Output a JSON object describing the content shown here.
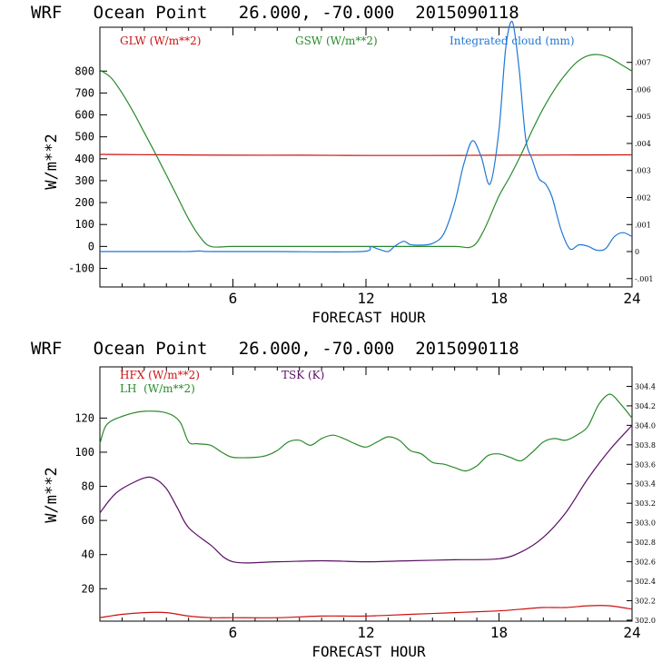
{
  "chart_data": [
    {
      "type": "line",
      "title": "WRF   Ocean Point   26.000, -70.000  2015090118",
      "xlabel": "FORECAST HOUR",
      "ylabel": "W/m**2",
      "xlim": [
        0,
        24
      ],
      "ylim": [
        -185,
        1000
      ],
      "x_ticks": [
        6,
        12,
        18,
        24
      ],
      "y_ticks": [
        -100,
        0,
        100,
        200,
        300,
        400,
        500,
        600,
        700,
        800
      ],
      "y2_label": "",
      "y2_ticks": [
        {
          "value": -0.001,
          "label": "-.001"
        },
        {
          "value": 0,
          "label": "0"
        },
        {
          "value": 0.001,
          "label": ".001"
        },
        {
          "value": 0.002,
          "label": ".002"
        },
        {
          "value": 0.003,
          "label": ".003"
        },
        {
          "value": 0.004,
          "label": ".004"
        },
        {
          "value": 0.005,
          "label": ".005"
        },
        {
          "value": 0.006,
          "label": ".006"
        },
        {
          "value": 0.007,
          "label": ".007"
        }
      ],
      "series": [
        {
          "name": "GLW (W/m**2)",
          "axis": "left",
          "color": "#cc1111",
          "x": [
            0,
            3,
            6,
            9,
            12,
            15,
            18,
            21,
            24
          ],
          "values": [
            420,
            418,
            416,
            416,
            415,
            415,
            416,
            417,
            418
          ]
        },
        {
          "name": "GSW (W/m**2)",
          "axis": "left",
          "color": "#2a8a2a",
          "x": [
            0,
            0.5,
            1,
            1.5,
            2,
            2.5,
            3,
            3.5,
            4,
            4.5,
            5,
            6,
            8,
            10,
            12,
            14,
            16,
            16.8,
            17.3,
            18,
            18.5,
            19,
            19.5,
            20,
            20.5,
            21,
            21.5,
            22,
            22.5,
            23,
            23.5,
            24
          ],
          "values": [
            805,
            770,
            700,
            615,
            520,
            425,
            325,
            225,
            125,
            45,
            0,
            0,
            0,
            0,
            0,
            0,
            0,
            0,
            70,
            230,
            320,
            420,
            530,
            630,
            715,
            785,
            840,
            870,
            875,
            860,
            830,
            800
          ]
        },
        {
          "name": "Integrated cloud (mm)",
          "axis": "right",
          "color": "#1f77d4",
          "x": [
            0,
            3,
            4,
            4.5,
            5,
            8,
            11.8,
            12.2,
            12.6,
            13,
            13.3,
            13.7,
            14,
            14.5,
            15,
            15.5,
            16,
            16.4,
            16.8,
            17.2,
            17.6,
            18.0,
            18.3,
            18.6,
            18.9,
            19.2,
            19.5,
            19.8,
            20.1,
            20.4,
            20.8,
            21.2,
            21.6,
            22,
            22.4,
            22.8,
            23.2,
            23.6,
            24
          ],
          "values": [
            0,
            0,
            0,
            2e-05,
            0,
            0,
            0,
            0.00018,
            8e-05,
            0,
            0.0002,
            0.00038,
            0.00026,
            0.00024,
            0.0003,
            0.00065,
            0.0018,
            0.0032,
            0.0041,
            0.0035,
            0.0025,
            0.0045,
            0.0075,
            0.0085,
            0.0068,
            0.0042,
            0.0034,
            0.0027,
            0.0025,
            0.002,
            0.0008,
            0.0001,
            0.00025,
            0.0002,
            5e-05,
            0.0001,
            0.00055,
            0.0007,
            0.00055
          ]
        }
      ]
    },
    {
      "type": "line",
      "title": "WRF   Ocean Point   26.000, -70.000  2015090118",
      "xlabel": "FORECAST HOUR",
      "ylabel": "W/m**2",
      "xlim": [
        0,
        24
      ],
      "ylim": [
        1,
        150
      ],
      "x_ticks": [
        6,
        12,
        18,
        24
      ],
      "y_ticks": [
        20,
        40,
        60,
        80,
        100,
        120
      ],
      "y2_ticks": [
        {
          "value": 302.0,
          "label": "302.0"
        },
        {
          "value": 302.2,
          "label": "302.2"
        },
        {
          "value": 302.4,
          "label": "302.4"
        },
        {
          "value": 302.6,
          "label": "302.6"
        },
        {
          "value": 302.8,
          "label": "302.8"
        },
        {
          "value": 303.0,
          "label": "303.0"
        },
        {
          "value": 303.2,
          "label": "303.2"
        },
        {
          "value": 303.4,
          "label": "303.4"
        },
        {
          "value": 303.6,
          "label": "303.6"
        },
        {
          "value": 303.8,
          "label": "303.8"
        },
        {
          "value": 304.0,
          "label": "304.0"
        },
        {
          "value": 304.2,
          "label": "304.2"
        },
        {
          "value": 304.4,
          "label": "304.4"
        }
      ],
      "series": [
        {
          "name": "HFX (W/m**2)",
          "axis": "left",
          "color": "#cc1111",
          "x": [
            0,
            1,
            2,
            3,
            4,
            5,
            6,
            8,
            10,
            12,
            14,
            16,
            18,
            19,
            20,
            21,
            22,
            23,
            24
          ],
          "values": [
            3,
            5,
            6,
            6,
            4,
            3,
            3,
            3,
            4,
            4,
            5,
            6,
            7,
            8,
            9,
            9,
            10,
            10,
            8
          ]
        },
        {
          "name": "LH  (W/m**2)",
          "axis": "left",
          "color": "#2a8a2a",
          "x": [
            0,
            0.3,
            1,
            2,
            3,
            3.6,
            4,
            4.4,
            5,
            5.5,
            6,
            7,
            7.5,
            8,
            8.5,
            9,
            9.5,
            10,
            10.5,
            11,
            11.5,
            12,
            12.5,
            13,
            13.5,
            14,
            14.5,
            15,
            15.5,
            16,
            16.5,
            17,
            17.5,
            18,
            18.5,
            19,
            19.5,
            20,
            20.5,
            21,
            21.5,
            22,
            22.5,
            23,
            23.5,
            24
          ],
          "values": [
            105,
            116,
            121,
            124,
            123,
            118,
            106,
            105,
            104,
            100,
            97,
            97,
            98,
            101,
            106,
            107,
            104,
            108,
            110,
            108,
            105,
            103,
            106,
            109,
            107,
            101,
            99,
            94,
            93,
            91,
            89,
            92,
            98,
            99,
            97,
            95,
            100,
            106,
            108,
            107,
            110,
            115,
            128,
            134,
            128,
            120
          ]
        },
        {
          "name": "TSK (K)",
          "axis": "right",
          "color": "#5b0e66",
          "x": [
            0,
            0.5,
            1,
            2,
            2.5,
            3,
            3.5,
            4,
            5,
            6,
            8,
            10,
            12,
            14,
            16,
            18,
            19,
            20,
            21,
            22,
            23,
            24
          ],
          "values": [
            303.1,
            303.25,
            303.35,
            303.46,
            303.45,
            303.35,
            303.15,
            302.95,
            302.77,
            302.6,
            302.6,
            302.61,
            302.6,
            302.61,
            302.62,
            302.63,
            302.7,
            302.85,
            303.1,
            303.45,
            303.75,
            304.0
          ]
        }
      ]
    }
  ]
}
